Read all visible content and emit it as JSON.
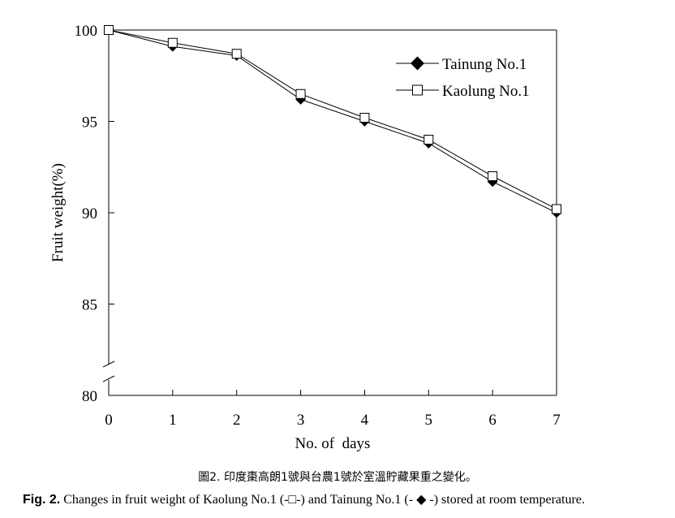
{
  "chart_data": {
    "type": "line",
    "xlabel": "No. of  days",
    "ylabel": "Fruit weight(%)",
    "x": [
      0,
      1,
      2,
      3,
      4,
      5,
      6,
      7
    ],
    "x_ticks": [
      "0",
      "1",
      "2",
      "3",
      "4",
      "5",
      "6",
      "7"
    ],
    "y_ticks": [
      "80",
      "85",
      "90",
      "95",
      "100"
    ],
    "xlim": [
      0,
      7
    ],
    "ylim": [
      80,
      100
    ],
    "axis_break": "y between 80 and 85",
    "grid": false,
    "legend_position": "top-right",
    "series": [
      {
        "name": "Tainung No.1",
        "marker": "filled-diamond",
        "color": "#000000",
        "values": [
          100,
          99.1,
          98.6,
          96.2,
          95.0,
          93.8,
          91.7,
          90.0
        ]
      },
      {
        "name": "Kaolung No.1",
        "marker": "open-square",
        "color": "#000000",
        "values": [
          100,
          99.3,
          98.7,
          96.5,
          95.2,
          94.0,
          92.0,
          90.2
        ]
      }
    ]
  },
  "caption": {
    "chinese": "圖2. 印度棗高朗1號與台農1號於室溫貯藏果重之變化。",
    "fig_number": "Fig. 2.",
    "text_before_square": " Changes in fruit weight of Kaolung No.1 (-",
    "square_symbol": "□",
    "text_middle": "-) and Tainung No.1 (- ",
    "diamond_symbol": "◆",
    "text_after": " -) stored at room temperature."
  }
}
